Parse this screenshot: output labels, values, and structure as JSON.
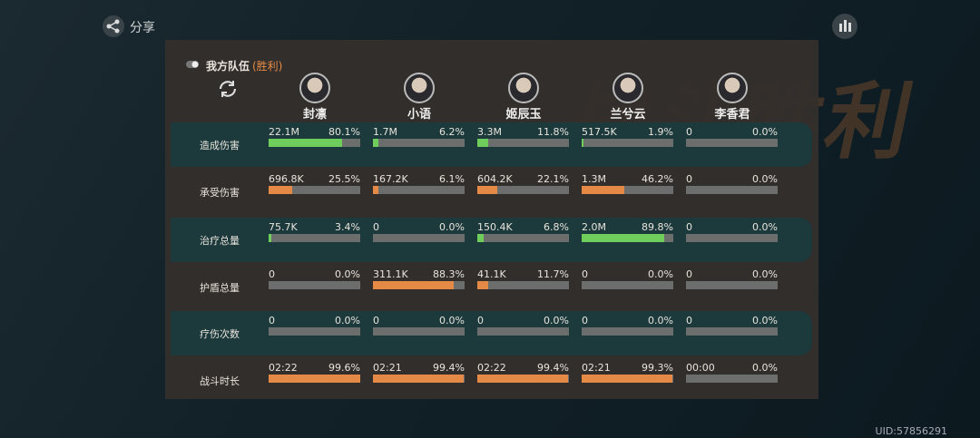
{
  "share": "分享",
  "watermark": "战斗胜利",
  "team": {
    "title": "我方队伍",
    "result": "(胜利)"
  },
  "characters": [
    "封凛",
    "小语",
    "姬辰玉",
    "兰兮云",
    "李香君"
  ],
  "rows": [
    {
      "label": "造成伤害",
      "color": "#6fcd5b",
      "cells": [
        {
          "amount": "22.1M",
          "share": {
            "value": 80.1,
            "label": "80.1%"
          }
        },
        {
          "amount": "1.7M",
          "share": {
            "value": 6.2,
            "label": "6.2%"
          }
        },
        {
          "amount": "3.3M",
          "share": {
            "value": 11.8,
            "label": "11.8%"
          }
        },
        {
          "amount": "517.5K",
          "share": {
            "value": 1.9,
            "label": "1.9%"
          }
        },
        {
          "amount": "0",
          "share": {
            "value": 0,
            "label": "0.0%"
          }
        }
      ]
    },
    {
      "label": "承受伤害",
      "color": "#e58a46",
      "cells": [
        {
          "amount": "696.8K",
          "share": {
            "value": 25.5,
            "label": "25.5%"
          }
        },
        {
          "amount": "167.2K",
          "share": {
            "value": 6.1,
            "label": "6.1%"
          }
        },
        {
          "amount": "604.2K",
          "share": {
            "value": 22.1,
            "label": "22.1%"
          }
        },
        {
          "amount": "1.3M",
          "share": {
            "value": 46.2,
            "label": "46.2%"
          }
        },
        {
          "amount": "0",
          "share": {
            "value": 0,
            "label": "0.0%"
          }
        }
      ]
    },
    {
      "label": "治疗总量",
      "color": "#6fcd5b",
      "cells": [
        {
          "amount": "75.7K",
          "share": {
            "value": 3.4,
            "label": "3.4%"
          }
        },
        {
          "amount": "0",
          "share": {
            "value": 0,
            "label": "0.0%"
          }
        },
        {
          "amount": "150.4K",
          "share": {
            "value": 6.8,
            "label": "6.8%"
          }
        },
        {
          "amount": "2.0M",
          "share": {
            "value": 89.8,
            "label": "89.8%"
          }
        },
        {
          "amount": "0",
          "share": {
            "value": 0,
            "label": "0.0%"
          }
        }
      ]
    },
    {
      "label": "护盾总量",
      "color": "#e58a46",
      "cells": [
        {
          "amount": "0",
          "share": {
            "value": 0,
            "label": "0.0%"
          }
        },
        {
          "amount": "311.1K",
          "share": {
            "value": 88.3,
            "label": "88.3%"
          }
        },
        {
          "amount": "41.1K",
          "share": {
            "value": 11.7,
            "label": "11.7%"
          }
        },
        {
          "amount": "0",
          "share": {
            "value": 0,
            "label": "0.0%"
          }
        },
        {
          "amount": "0",
          "share": {
            "value": 0,
            "label": "0.0%"
          }
        }
      ]
    },
    {
      "label": "疗伤次数",
      "color": "#6fcd5b",
      "cells": [
        {
          "amount": "0",
          "share": {
            "value": 0,
            "label": "0.0%"
          }
        },
        {
          "amount": "0",
          "share": {
            "value": 0,
            "label": "0.0%"
          }
        },
        {
          "amount": "0",
          "share": {
            "value": 0,
            "label": "0.0%"
          }
        },
        {
          "amount": "0",
          "share": {
            "value": 0,
            "label": "0.0%"
          }
        },
        {
          "amount": "0",
          "share": {
            "value": 0,
            "label": "0.0%"
          }
        }
      ]
    },
    {
      "label": "战斗时长",
      "color": "#e58a46",
      "cells": [
        {
          "amount": "02:22",
          "share": {
            "value": 99.6,
            "label": "99.6%"
          }
        },
        {
          "amount": "02:21",
          "share": {
            "value": 99.4,
            "label": "99.4%"
          }
        },
        {
          "amount": "02:22",
          "share": {
            "value": 99.4,
            "label": "99.4%"
          }
        },
        {
          "amount": "02:21",
          "share": {
            "value": 99.3,
            "label": "99.3%"
          }
        },
        {
          "amount": "00:00",
          "share": {
            "value": 0,
            "label": "0.0%"
          }
        }
      ]
    }
  ],
  "uid": "UID:57856291"
}
